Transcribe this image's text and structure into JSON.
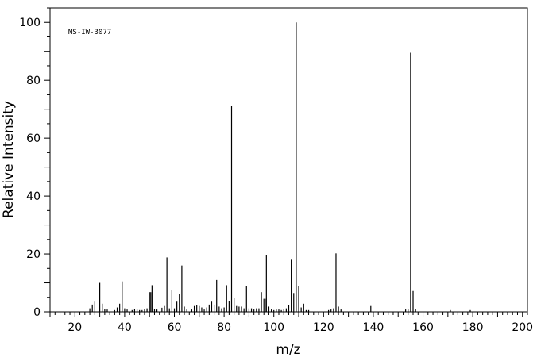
{
  "chart_data": {
    "type": "bar",
    "annotation": "MS-IW-3077",
    "xlabel": "m/z",
    "ylabel": "Relative Intensity",
    "xlim": [
      10,
      202
    ],
    "ylim": [
      0,
      105
    ],
    "x_ticks": [
      20,
      40,
      60,
      80,
      100,
      120,
      140,
      160,
      180,
      200
    ],
    "y_ticks": [
      0,
      20,
      40,
      60,
      80,
      100
    ],
    "grid": false,
    "peaks": [
      {
        "x": 26,
        "y": 1.2
      },
      {
        "x": 27,
        "y": 2.5
      },
      {
        "x": 28,
        "y": 3.5
      },
      {
        "x": 30,
        "y": 10
      },
      {
        "x": 31,
        "y": 2.8
      },
      {
        "x": 32,
        "y": 1.0
      },
      {
        "x": 33,
        "y": 0.8
      },
      {
        "x": 36,
        "y": 0.6
      },
      {
        "x": 37,
        "y": 1.5
      },
      {
        "x": 38,
        "y": 2.8
      },
      {
        "x": 39,
        "y": 10.5
      },
      {
        "x": 40,
        "y": 1.2
      },
      {
        "x": 41,
        "y": 0.8
      },
      {
        "x": 43,
        "y": 0.6
      },
      {
        "x": 44,
        "y": 1.0
      },
      {
        "x": 45,
        "y": 0.8
      },
      {
        "x": 46,
        "y": 0.6
      },
      {
        "x": 47,
        "y": 0.6
      },
      {
        "x": 48,
        "y": 0.8
      },
      {
        "x": 49,
        "y": 1.2
      },
      {
        "x": 50,
        "y": 6.8
      },
      {
        "x": 50.5,
        "y": 6.8
      },
      {
        "x": 51,
        "y": 9.2
      },
      {
        "x": 52,
        "y": 1.0
      },
      {
        "x": 53,
        "y": 0.8
      },
      {
        "x": 55,
        "y": 1.4
      },
      {
        "x": 56,
        "y": 2.0
      },
      {
        "x": 57,
        "y": 18.8
      },
      {
        "x": 58,
        "y": 1.2
      },
      {
        "x": 59,
        "y": 7.6
      },
      {
        "x": 60,
        "y": 1.2
      },
      {
        "x": 61,
        "y": 3.5
      },
      {
        "x": 62,
        "y": 6.2
      },
      {
        "x": 63,
        "y": 16
      },
      {
        "x": 64,
        "y": 1.8
      },
      {
        "x": 65,
        "y": 0.8
      },
      {
        "x": 67,
        "y": 0.8
      },
      {
        "x": 68,
        "y": 2.0
      },
      {
        "x": 69,
        "y": 2.2
      },
      {
        "x": 70,
        "y": 2.0
      },
      {
        "x": 71,
        "y": 1.5
      },
      {
        "x": 72,
        "y": 0.8
      },
      {
        "x": 73,
        "y": 1.5
      },
      {
        "x": 74,
        "y": 2.5
      },
      {
        "x": 75,
        "y": 3.5
      },
      {
        "x": 76,
        "y": 2.5
      },
      {
        "x": 77,
        "y": 11
      },
      {
        "x": 78,
        "y": 1.8
      },
      {
        "x": 79,
        "y": 1.2
      },
      {
        "x": 80,
        "y": 1.5
      },
      {
        "x": 81,
        "y": 9.2
      },
      {
        "x": 82,
        "y": 3.8
      },
      {
        "x": 83,
        "y": 71
      },
      {
        "x": 84,
        "y": 4.8
      },
      {
        "x": 85,
        "y": 2.0
      },
      {
        "x": 86,
        "y": 1.8
      },
      {
        "x": 87,
        "y": 1.8
      },
      {
        "x": 88,
        "y": 1.2
      },
      {
        "x": 89,
        "y": 8.8
      },
      {
        "x": 90,
        "y": 1.2
      },
      {
        "x": 91,
        "y": 1.2
      },
      {
        "x": 92,
        "y": 0.8
      },
      {
        "x": 93,
        "y": 1.2
      },
      {
        "x": 94,
        "y": 1.2
      },
      {
        "x": 95,
        "y": 6.8
      },
      {
        "x": 96,
        "y": 4.5
      },
      {
        "x": 96.5,
        "y": 4.5
      },
      {
        "x": 97,
        "y": 19.5
      },
      {
        "x": 98,
        "y": 1.8
      },
      {
        "x": 99,
        "y": 0.8
      },
      {
        "x": 100,
        "y": 0.6
      },
      {
        "x": 101,
        "y": 0.8
      },
      {
        "x": 102,
        "y": 0.8
      },
      {
        "x": 103,
        "y": 0.6
      },
      {
        "x": 104,
        "y": 0.8
      },
      {
        "x": 105,
        "y": 1.2
      },
      {
        "x": 106,
        "y": 2.2
      },
      {
        "x": 107,
        "y": 18
      },
      {
        "x": 108,
        "y": 6.5
      },
      {
        "x": 109,
        "y": 100
      },
      {
        "x": 110,
        "y": 8.8
      },
      {
        "x": 111,
        "y": 1.5
      },
      {
        "x": 112,
        "y": 2.8
      },
      {
        "x": 113,
        "y": 0.6
      },
      {
        "x": 114,
        "y": 0.6
      },
      {
        "x": 122,
        "y": 0.6
      },
      {
        "x": 123,
        "y": 0.8
      },
      {
        "x": 124,
        "y": 1.2
      },
      {
        "x": 125,
        "y": 20.2
      },
      {
        "x": 126,
        "y": 1.8
      },
      {
        "x": 127,
        "y": 0.8
      },
      {
        "x": 139,
        "y": 2.0
      },
      {
        "x": 153,
        "y": 0.8
      },
      {
        "x": 154,
        "y": 0.8
      },
      {
        "x": 155,
        "y": 89.5
      },
      {
        "x": 156,
        "y": 7.2
      },
      {
        "x": 157,
        "y": 1.0
      },
      {
        "x": 171,
        "y": 0.6
      },
      {
        "x": 179,
        "y": 0.6
      }
    ]
  }
}
